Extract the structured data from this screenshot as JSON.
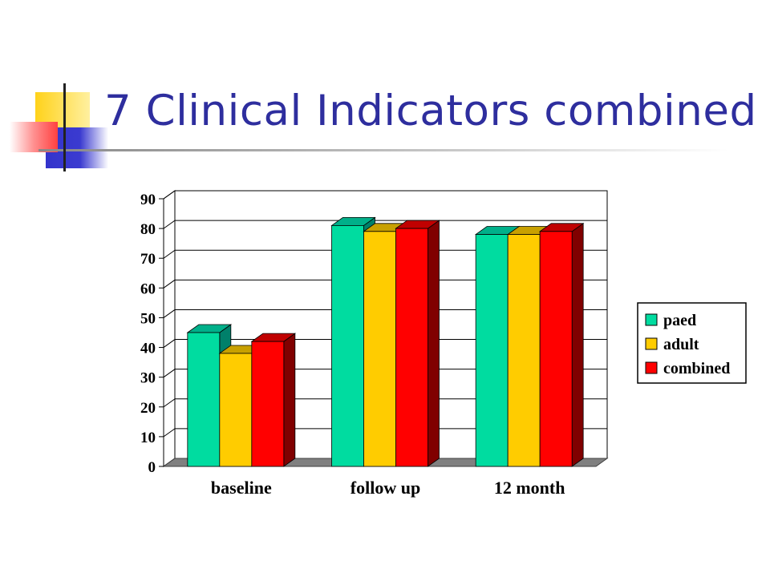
{
  "slide": {
    "title": "7 Clinical Indicators combined"
  },
  "colors": {
    "title": "#2e2e9e",
    "accent_yellow": "#ffd21a",
    "accent_blue": "#3333cc",
    "accent_red": "#ff4040"
  },
  "chart_data": {
    "type": "bar",
    "title": "",
    "xlabel": "",
    "ylabel": "",
    "categories": [
      "baseline",
      "follow up",
      "12 month"
    ],
    "series": [
      {
        "name": "paed",
        "values": [
          45,
          81,
          78
        ],
        "color": "#00dca0",
        "side_color": "#00806a",
        "top_color": "#00b08a"
      },
      {
        "name": "adult",
        "values": [
          38,
          79,
          78
        ],
        "color": "#ffcc00",
        "side_color": "#a08000",
        "top_color": "#c8a000"
      },
      {
        "name": "combined",
        "values": [
          42,
          80,
          79
        ],
        "color": "#ff0000",
        "side_color": "#800000",
        "top_color": "#c00000"
      }
    ],
    "ylim": [
      0,
      90
    ],
    "yticks": [
      "0",
      "10",
      "20",
      "30",
      "40",
      "50",
      "60",
      "70",
      "80",
      "90"
    ],
    "grid": true,
    "legend_position": "right",
    "style": "3d-clustered-bar"
  }
}
